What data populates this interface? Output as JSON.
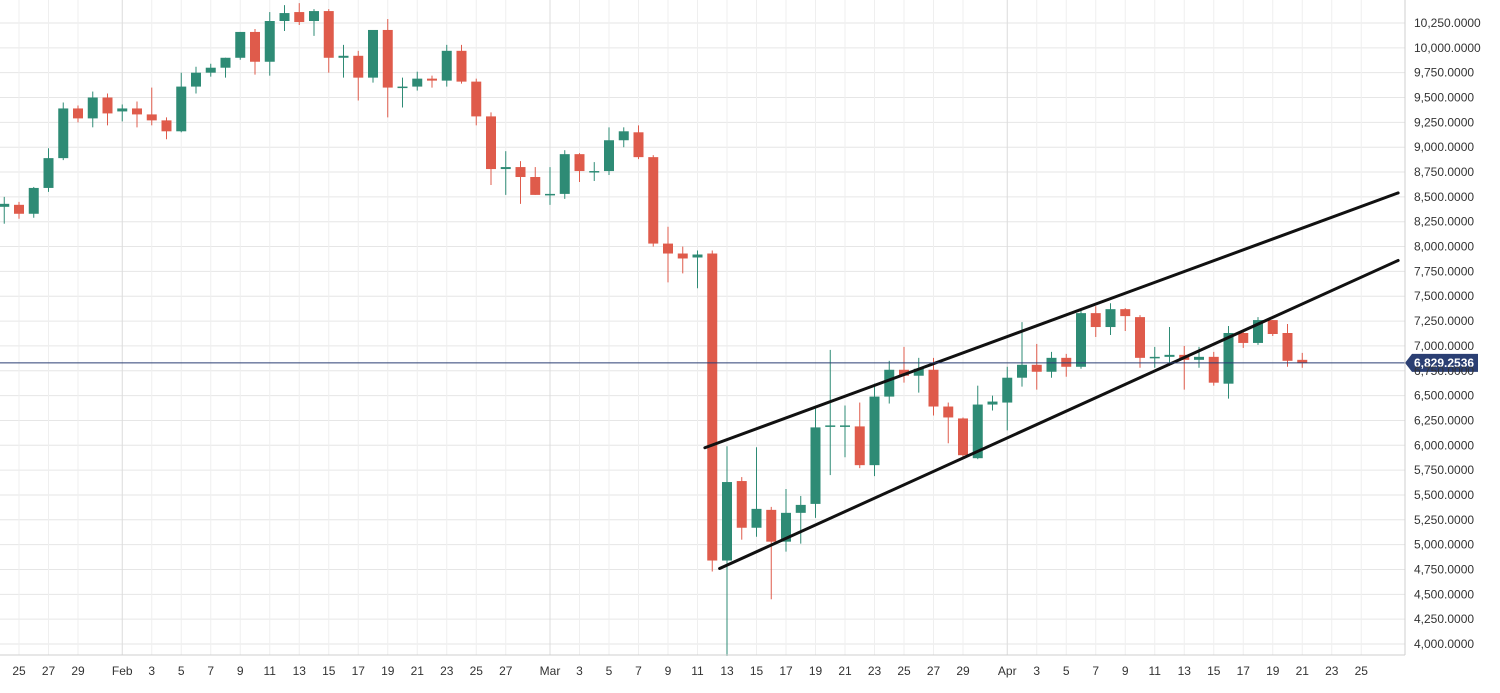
{
  "chart_data": {
    "type": "candlestick",
    "title": "",
    "xlabel": "",
    "ylabel": "",
    "ylim": [
      3900,
      10450
    ],
    "y_ticks": [
      "10,250.0000",
      "10,000.0000",
      "9,750.0000",
      "9,500.0000",
      "9,250.0000",
      "9,000.0000",
      "8,750.0000",
      "8,500.0000",
      "8,250.0000",
      "8,000.0000",
      "7,750.0000",
      "7,500.0000",
      "7,250.0000",
      "7,000.0000",
      "6,750.0000",
      "6,500.0000",
      "6,250.0000",
      "6,000.0000",
      "5,750.0000",
      "5,500.0000",
      "5,250.0000",
      "5,000.0000",
      "4,750.0000",
      "4,500.0000",
      "4,250.0000",
      "4,000.0000"
    ],
    "y_tick_values": [
      10250,
      10000,
      9750,
      9500,
      9250,
      9000,
      8750,
      8500,
      8250,
      8000,
      7750,
      7500,
      7250,
      7000,
      6750,
      6500,
      6250,
      6000,
      5750,
      5500,
      5250,
      5000,
      4750,
      4500,
      4250,
      4000
    ],
    "x_ticks": [
      {
        "day": 2,
        "label": "25"
      },
      {
        "day": 4,
        "label": "27"
      },
      {
        "day": 6,
        "label": "29"
      },
      {
        "day": 9,
        "label": "Feb"
      },
      {
        "day": 11,
        "label": "3"
      },
      {
        "day": 13,
        "label": "5"
      },
      {
        "day": 15,
        "label": "7"
      },
      {
        "day": 17,
        "label": "9"
      },
      {
        "day": 19,
        "label": "11"
      },
      {
        "day": 21,
        "label": "13"
      },
      {
        "day": 23,
        "label": "15"
      },
      {
        "day": 25,
        "label": "17"
      },
      {
        "day": 27,
        "label": "19"
      },
      {
        "day": 29,
        "label": "21"
      },
      {
        "day": 31,
        "label": "23"
      },
      {
        "day": 33,
        "label": "25"
      },
      {
        "day": 35,
        "label": "27"
      },
      {
        "day": 38,
        "label": "Mar"
      },
      {
        "day": 40,
        "label": "3"
      },
      {
        "day": 42,
        "label": "5"
      },
      {
        "day": 44,
        "label": "7"
      },
      {
        "day": 46,
        "label": "9"
      },
      {
        "day": 48,
        "label": "11"
      },
      {
        "day": 50,
        "label": "13"
      },
      {
        "day": 52,
        "label": "15"
      },
      {
        "day": 54,
        "label": "17"
      },
      {
        "day": 56,
        "label": "19"
      },
      {
        "day": 58,
        "label": "21"
      },
      {
        "day": 60,
        "label": "23"
      },
      {
        "day": 62,
        "label": "25"
      },
      {
        "day": 64,
        "label": "27"
      },
      {
        "day": 66,
        "label": "29"
      },
      {
        "day": 69,
        "label": "Apr"
      },
      {
        "day": 71,
        "label": "3"
      },
      {
        "day": 73,
        "label": "5"
      },
      {
        "day": 75,
        "label": "7"
      },
      {
        "day": 77,
        "label": "9"
      },
      {
        "day": 79,
        "label": "11"
      },
      {
        "day": 81,
        "label": "13"
      },
      {
        "day": 83,
        "label": "15"
      },
      {
        "day": 85,
        "label": "17"
      },
      {
        "day": 87,
        "label": "19"
      },
      {
        "day": 89,
        "label": "21"
      },
      {
        "day": 91,
        "label": "23"
      },
      {
        "day": 93,
        "label": "25"
      }
    ],
    "candles": [
      {
        "day": 1,
        "o": 8400,
        "h": 8500,
        "l": 8230,
        "c": 8430
      },
      {
        "day": 2,
        "o": 8420,
        "h": 8450,
        "l": 8280,
        "c": 8330
      },
      {
        "day": 3,
        "o": 8330,
        "h": 8600,
        "l": 8290,
        "c": 8590
      },
      {
        "day": 4,
        "o": 8590,
        "h": 8990,
        "l": 8550,
        "c": 8890
      },
      {
        "day": 5,
        "o": 8890,
        "h": 9450,
        "l": 8870,
        "c": 9390
      },
      {
        "day": 6,
        "o": 9390,
        "h": 9420,
        "l": 9250,
        "c": 9290
      },
      {
        "day": 7,
        "o": 9290,
        "h": 9560,
        "l": 9200,
        "c": 9500
      },
      {
        "day": 8,
        "o": 9500,
        "h": 9540,
        "l": 9220,
        "c": 9340
      },
      {
        "day": 9,
        "o": 9360,
        "h": 9430,
        "l": 9260,
        "c": 9390
      },
      {
        "day": 10,
        "o": 9390,
        "h": 9460,
        "l": 9200,
        "c": 9330
      },
      {
        "day": 11,
        "o": 9330,
        "h": 9600,
        "l": 9220,
        "c": 9270
      },
      {
        "day": 12,
        "o": 9270,
        "h": 9300,
        "l": 9080,
        "c": 9160
      },
      {
        "day": 13,
        "o": 9160,
        "h": 9750,
        "l": 9150,
        "c": 9610
      },
      {
        "day": 14,
        "o": 9610,
        "h": 9810,
        "l": 9540,
        "c": 9750
      },
      {
        "day": 15,
        "o": 9750,
        "h": 9840,
        "l": 9710,
        "c": 9800
      },
      {
        "day": 16,
        "o": 9800,
        "h": 9900,
        "l": 9700,
        "c": 9900
      },
      {
        "day": 17,
        "o": 9900,
        "h": 10160,
        "l": 9880,
        "c": 10160
      },
      {
        "day": 18,
        "o": 10160,
        "h": 10190,
        "l": 9730,
        "c": 9860
      },
      {
        "day": 19,
        "o": 9860,
        "h": 10360,
        "l": 9720,
        "c": 10270
      },
      {
        "day": 20,
        "o": 10270,
        "h": 10430,
        "l": 10170,
        "c": 10350
      },
      {
        "day": 21,
        "o": 10360,
        "h": 10450,
        "l": 10230,
        "c": 10260
      },
      {
        "day": 22,
        "o": 10270,
        "h": 10390,
        "l": 10120,
        "c": 10370
      },
      {
        "day": 23,
        "o": 10370,
        "h": 10390,
        "l": 9750,
        "c": 9900
      },
      {
        "day": 24,
        "o": 9900,
        "h": 10030,
        "l": 9700,
        "c": 9920
      },
      {
        "day": 25,
        "o": 9920,
        "h": 9970,
        "l": 9470,
        "c": 9700
      },
      {
        "day": 26,
        "o": 9700,
        "h": 10180,
        "l": 9650,
        "c": 10180
      },
      {
        "day": 27,
        "o": 10180,
        "h": 10290,
        "l": 9300,
        "c": 9600
      },
      {
        "day": 28,
        "o": 9600,
        "h": 9700,
        "l": 9400,
        "c": 9610
      },
      {
        "day": 29,
        "o": 9610,
        "h": 9760,
        "l": 9570,
        "c": 9690
      },
      {
        "day": 30,
        "o": 9690,
        "h": 9720,
        "l": 9600,
        "c": 9670
      },
      {
        "day": 31,
        "o": 9670,
        "h": 10030,
        "l": 9610,
        "c": 9970
      },
      {
        "day": 32,
        "o": 9970,
        "h": 10030,
        "l": 9640,
        "c": 9660
      },
      {
        "day": 33,
        "o": 9660,
        "h": 9690,
        "l": 9220,
        "c": 9310
      },
      {
        "day": 34,
        "o": 9310,
        "h": 9350,
        "l": 8620,
        "c": 8780
      },
      {
        "day": 35,
        "o": 8780,
        "h": 8960,
        "l": 8520,
        "c": 8800
      },
      {
        "day": 36,
        "o": 8800,
        "h": 8860,
        "l": 8430,
        "c": 8700
      },
      {
        "day": 37,
        "o": 8700,
        "h": 8800,
        "l": 8520,
        "c": 8520
      },
      {
        "day": 38,
        "o": 8520,
        "h": 8800,
        "l": 8420,
        "c": 8530
      },
      {
        "day": 39,
        "o": 8530,
        "h": 8970,
        "l": 8480,
        "c": 8930
      },
      {
        "day": 40,
        "o": 8930,
        "h": 8940,
        "l": 8650,
        "c": 8760
      },
      {
        "day": 41,
        "o": 8760,
        "h": 8850,
        "l": 8660,
        "c": 8760
      },
      {
        "day": 42,
        "o": 8760,
        "h": 9200,
        "l": 8720,
        "c": 9070
      },
      {
        "day": 43,
        "o": 9070,
        "h": 9200,
        "l": 9000,
        "c": 9160
      },
      {
        "day": 44,
        "o": 9150,
        "h": 9220,
        "l": 8880,
        "c": 8900
      },
      {
        "day": 45,
        "o": 8900,
        "h": 8920,
        "l": 8000,
        "c": 8030
      },
      {
        "day": 46,
        "o": 8030,
        "h": 8200,
        "l": 7640,
        "c": 7930
      },
      {
        "day": 47,
        "o": 7930,
        "h": 8000,
        "l": 7730,
        "c": 7880
      },
      {
        "day": 48,
        "o": 7890,
        "h": 7960,
        "l": 7580,
        "c": 7920
      },
      {
        "day": 49,
        "o": 7930,
        "h": 7960,
        "l": 4730,
        "c": 4840
      },
      {
        "day": 50,
        "o": 4840,
        "h": 5990,
        "l": 3880,
        "c": 5630
      },
      {
        "day": 51,
        "o": 5640,
        "h": 5680,
        "l": 5050,
        "c": 5170
      },
      {
        "day": 52,
        "o": 5170,
        "h": 5980,
        "l": 5080,
        "c": 5360
      },
      {
        "day": 53,
        "o": 5350,
        "h": 5380,
        "l": 4450,
        "c": 5030
      },
      {
        "day": 54,
        "o": 5030,
        "h": 5560,
        "l": 4930,
        "c": 5320
      },
      {
        "day": 55,
        "o": 5320,
        "h": 5490,
        "l": 5010,
        "c": 5400
      },
      {
        "day": 56,
        "o": 5410,
        "h": 6400,
        "l": 5270,
        "c": 6180
      },
      {
        "day": 57,
        "o": 6190,
        "h": 6960,
        "l": 5700,
        "c": 6200
      },
      {
        "day": 58,
        "o": 6200,
        "h": 6400,
        "l": 5880,
        "c": 6200
      },
      {
        "day": 59,
        "o": 6190,
        "h": 6430,
        "l": 5770,
        "c": 5800
      },
      {
        "day": 60,
        "o": 5800,
        "h": 6620,
        "l": 5690,
        "c": 6490
      },
      {
        "day": 61,
        "o": 6490,
        "h": 6850,
        "l": 6420,
        "c": 6760
      },
      {
        "day": 62,
        "o": 6760,
        "h": 6990,
        "l": 6630,
        "c": 6700
      },
      {
        "day": 63,
        "o": 6700,
        "h": 6880,
        "l": 6530,
        "c": 6770
      },
      {
        "day": 64,
        "o": 6760,
        "h": 6880,
        "l": 6300,
        "c": 6390
      },
      {
        "day": 65,
        "o": 6390,
        "h": 6430,
        "l": 6020,
        "c": 6280
      },
      {
        "day": 66,
        "o": 6270,
        "h": 6280,
        "l": 5870,
        "c": 5900
      },
      {
        "day": 67,
        "o": 5870,
        "h": 6600,
        "l": 5860,
        "c": 6410
      },
      {
        "day": 68,
        "o": 6410,
        "h": 6500,
        "l": 6350,
        "c": 6440
      },
      {
        "day": 69,
        "o": 6430,
        "h": 6790,
        "l": 6150,
        "c": 6680
      },
      {
        "day": 70,
        "o": 6680,
        "h": 7240,
        "l": 6590,
        "c": 6810
      },
      {
        "day": 71,
        "o": 6810,
        "h": 7020,
        "l": 6560,
        "c": 6740
      },
      {
        "day": 72,
        "o": 6740,
        "h": 6940,
        "l": 6680,
        "c": 6880
      },
      {
        "day": 73,
        "o": 6880,
        "h": 6920,
        "l": 6690,
        "c": 6790
      },
      {
        "day": 74,
        "o": 6790,
        "h": 7360,
        "l": 6770,
        "c": 7330
      },
      {
        "day": 75,
        "o": 7330,
        "h": 7400,
        "l": 7090,
        "c": 7190
      },
      {
        "day": 76,
        "o": 7190,
        "h": 7430,
        "l": 7110,
        "c": 7370
      },
      {
        "day": 77,
        "o": 7370,
        "h": 7380,
        "l": 7150,
        "c": 7300
      },
      {
        "day": 78,
        "o": 7290,
        "h": 7310,
        "l": 6780,
        "c": 6880
      },
      {
        "day": 79,
        "o": 6880,
        "h": 6990,
        "l": 6780,
        "c": 6890
      },
      {
        "day": 80,
        "o": 6890,
        "h": 7190,
        "l": 6800,
        "c": 6910
      },
      {
        "day": 81,
        "o": 6910,
        "h": 7000,
        "l": 6560,
        "c": 6860
      },
      {
        "day": 82,
        "o": 6860,
        "h": 6990,
        "l": 6780,
        "c": 6890
      },
      {
        "day": 83,
        "o": 6890,
        "h": 6940,
        "l": 6600,
        "c": 6630
      },
      {
        "day": 84,
        "o": 6620,
        "h": 7200,
        "l": 6470,
        "c": 7130
      },
      {
        "day": 85,
        "o": 7130,
        "h": 7150,
        "l": 6980,
        "c": 7030
      },
      {
        "day": 86,
        "o": 7030,
        "h": 7290,
        "l": 7010,
        "c": 7260
      },
      {
        "day": 87,
        "o": 7260,
        "h": 7260,
        "l": 7100,
        "c": 7120
      },
      {
        "day": 88,
        "o": 7130,
        "h": 7220,
        "l": 6790,
        "c": 6850
      },
      {
        "day": 89,
        "o": 6860,
        "h": 6930,
        "l": 6780,
        "c": 6830
      }
    ],
    "trendlines": [
      {
        "name": "upper-channel-line",
        "from": {
          "day": 48.5,
          "price": 5975
        },
        "to": {
          "day": 95.5,
          "price": 8540
        }
      },
      {
        "name": "lower-channel-line",
        "from": {
          "day": 49.5,
          "price": 4760
        },
        "to": {
          "day": 95.5,
          "price": 7860
        }
      }
    ],
    "current_price": 6829.2536,
    "current_price_label": "6,829.2536",
    "colors": {
      "up": "#2e8b75",
      "down": "#df5b4b",
      "trendline": "#111111",
      "price_line": "#2b3f73",
      "price_badge": "#2b3f73",
      "grid": "#e6e6e6",
      "axis_text": "#333333"
    },
    "grid": true
  }
}
